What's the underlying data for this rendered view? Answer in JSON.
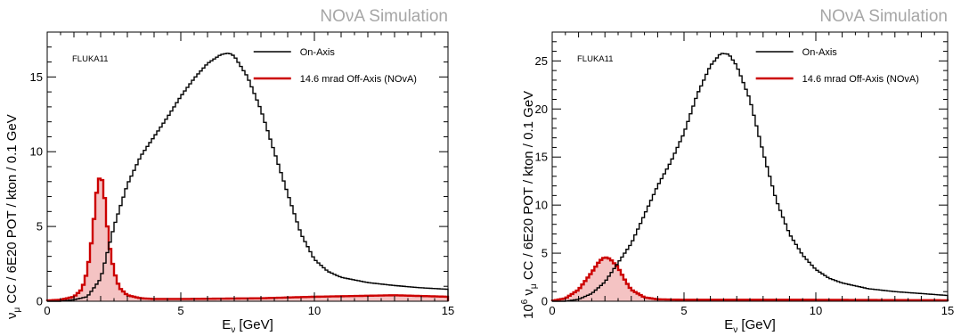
{
  "chart_data": [
    {
      "type": "line",
      "watermark": "NOνA Simulation",
      "annotation": "FLUKA11",
      "xlabel": "E",
      "xlabel_sub": "ν",
      "xlabel_unit": " [GeV]",
      "ylabel": "ν",
      "ylabel_sub": "μ",
      "ylabel_rest": " CC / 6E20 POT / kton / 0.1 GeV",
      "ylabel_prefix": "",
      "xlim": [
        0,
        15
      ],
      "ylim": [
        0,
        18
      ],
      "xticks": [
        0,
        5,
        10,
        15
      ],
      "yticks": [
        0,
        5,
        10,
        15
      ],
      "legend_position": "top-right",
      "series": [
        {
          "name": "On-Axis",
          "color": "#000000",
          "x": [
            0,
            0.5,
            1.0,
            1.5,
            2.0,
            2.5,
            3.0,
            3.5,
            4.0,
            4.5,
            5.0,
            5.5,
            6.0,
            6.5,
            6.8,
            7.0,
            7.5,
            8.0,
            8.5,
            9.0,
            9.5,
            10.0,
            10.5,
            11.0,
            12.0,
            13.0,
            14.0,
            15.0
          ],
          "y": [
            0.0,
            0.0,
            0.1,
            0.3,
            1.5,
            5.0,
            7.8,
            9.7,
            11.0,
            12.3,
            13.7,
            14.9,
            15.9,
            16.5,
            16.6,
            16.4,
            15.0,
            12.8,
            10.0,
            7.2,
            4.5,
            2.8,
            2.0,
            1.6,
            1.25,
            1.05,
            0.9,
            0.8
          ]
        },
        {
          "name": "14.6 mrad Off-Axis (NOvA)",
          "color": "#cc0000",
          "fill": "#f2b8b8",
          "x": [
            0,
            0.5,
            1.0,
            1.3,
            1.5,
            1.7,
            1.8,
            1.9,
            2.0,
            2.1,
            2.2,
            2.3,
            2.5,
            2.7,
            3.0,
            3.5,
            4.0,
            5.0,
            8.0,
            10.0,
            13.0,
            15.0
          ],
          "y": [
            0.05,
            0.1,
            0.3,
            0.8,
            2.0,
            4.5,
            6.5,
            8.0,
            8.4,
            7.8,
            6.0,
            4.0,
            2.0,
            0.9,
            0.4,
            0.2,
            0.15,
            0.15,
            0.2,
            0.3,
            0.4,
            0.3
          ]
        }
      ]
    },
    {
      "type": "line",
      "watermark": "NOνA Simulation",
      "annotation": "FLUKA11",
      "xlabel": "E",
      "xlabel_sub": "ν",
      "xlabel_unit": " [GeV]",
      "ylabel": "ν",
      "ylabel_sub": "μ",
      "ylabel_rest": " CC / 6E20 POT / kton / 0.1 GeV",
      "ylabel_prefix": "10",
      "ylabel_prefix_sup": "6",
      "xlim": [
        0,
        15
      ],
      "ylim": [
        0,
        28
      ],
      "xticks": [
        0,
        5,
        10,
        15
      ],
      "yticks": [
        0,
        5,
        10,
        15,
        20,
        25
      ],
      "legend_position": "top-right",
      "series": [
        {
          "name": "On-Axis",
          "color": "#000000",
          "x": [
            0,
            0.5,
            1.0,
            1.5,
            2.0,
            2.5,
            3.0,
            3.5,
            4.0,
            4.5,
            5.0,
            5.5,
            6.0,
            6.4,
            6.7,
            7.0,
            7.5,
            8.0,
            8.5,
            9.0,
            9.5,
            10.0,
            10.5,
            11.0,
            12.0,
            13.0,
            14.0,
            15.0
          ],
          "y": [
            0.0,
            0.0,
            0.2,
            0.8,
            2.0,
            4.0,
            6.0,
            9.0,
            12.0,
            14.5,
            17.5,
            21.5,
            24.5,
            25.8,
            25.7,
            24.5,
            21.0,
            15.5,
            10.5,
            7.0,
            4.8,
            3.3,
            2.4,
            1.9,
            1.3,
            1.0,
            0.8,
            0.6
          ]
        },
        {
          "name": "14.6 mrad Off-Axis (NOvA)",
          "color": "#cc0000",
          "fill": "#f2b8b8",
          "x": [
            0,
            0.5,
            1.0,
            1.5,
            1.8,
            2.0,
            2.2,
            2.5,
            2.8,
            3.0,
            3.5,
            4.0,
            5.0,
            8.0,
            10.0,
            15.0
          ],
          "y": [
            0.05,
            0.3,
            1.2,
            3.0,
            4.2,
            4.6,
            4.4,
            3.5,
            2.0,
            1.2,
            0.4,
            0.2,
            0.15,
            0.15,
            0.15,
            0.1
          ]
        }
      ]
    }
  ]
}
